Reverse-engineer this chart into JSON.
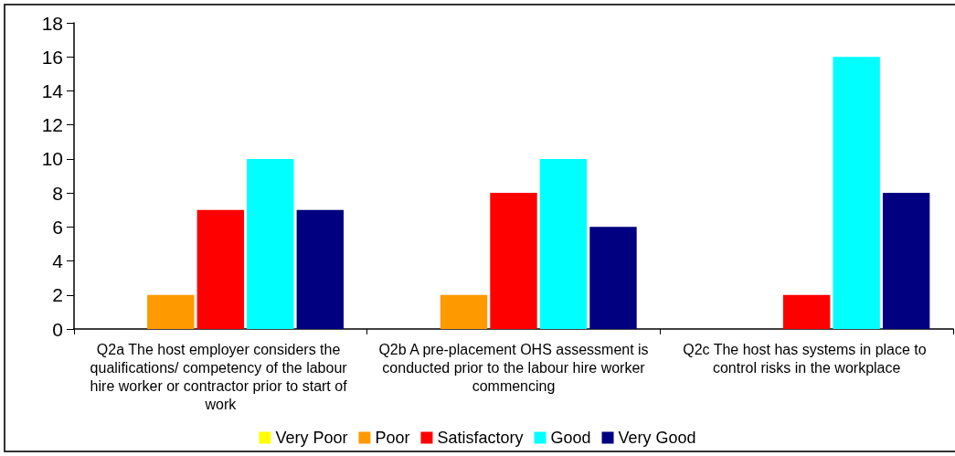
{
  "chart_data": {
    "type": "bar",
    "categories": [
      "Q2a The host employer considers the qualifications/ competency of the labour hire worker or contractor prior to start of work",
      "Q2b A pre-placement OHS assessment is conducted prior to the labour hire worker commencing",
      "Q2c The host has systems in place to control risks in the workplace"
    ],
    "series": [
      {
        "name": "Very Poor",
        "color": "#ffff00",
        "values": [
          0,
          0,
          0
        ]
      },
      {
        "name": "Poor",
        "color": "#ff9900",
        "values": [
          2,
          2,
          0
        ]
      },
      {
        "name": "Satisfactory",
        "color": "#ff0000",
        "values": [
          7,
          8,
          2
        ]
      },
      {
        "name": "Good",
        "color": "#00ffff",
        "values": [
          10,
          10,
          16
        ]
      },
      {
        "name": "Very Good",
        "color": "#000080",
        "values": [
          7,
          6,
          8
        ]
      }
    ],
    "ylim": [
      0,
      18
    ],
    "yticks": [
      0,
      2,
      4,
      6,
      8,
      10,
      12,
      14,
      16,
      18
    ],
    "grid": false,
    "legend": "bottom"
  }
}
